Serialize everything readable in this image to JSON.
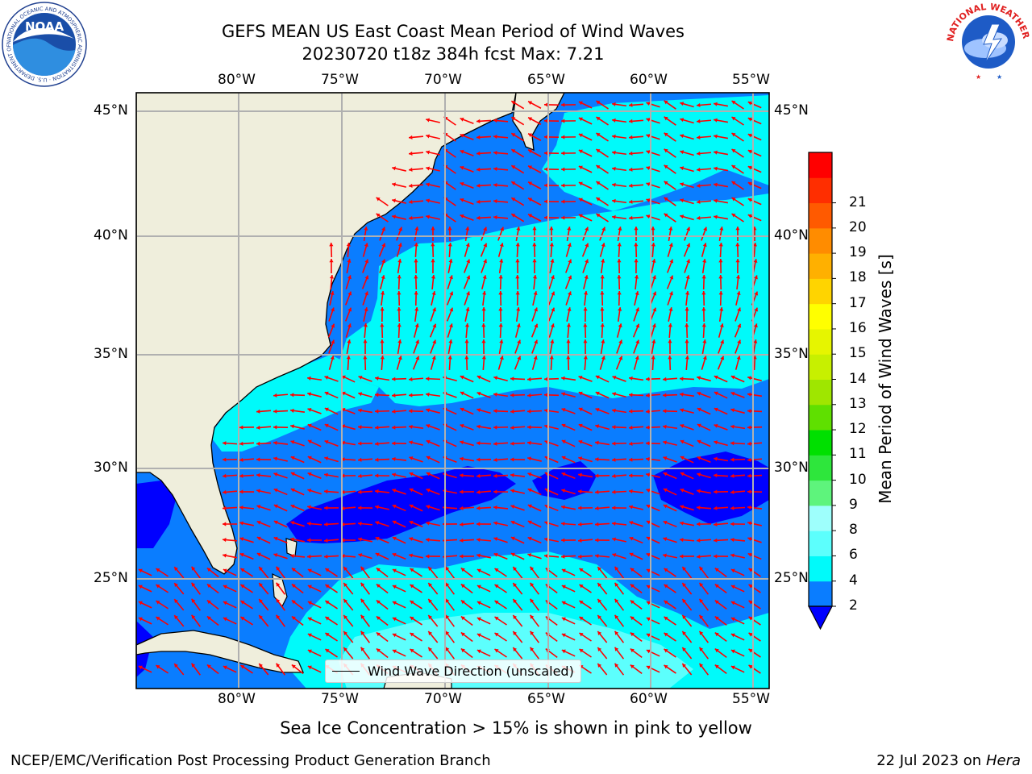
{
  "title": {
    "line1": "GEFS MEAN US East Coast Mean Period of Wind Waves",
    "line2": "20230720 t18z 384h fcst   Max: 7.21"
  },
  "map": {
    "lon_labels": [
      "80°W",
      "75°W",
      "70°W",
      "65°W",
      "60°W",
      "55°W"
    ],
    "lat_labels": [
      "45°N",
      "40°N",
      "35°N",
      "30°N",
      "25°N"
    ],
    "legend_label": "Wind Wave Direction (unscaled)",
    "colors": {
      "land": "#efeedc",
      "level_2_4": "#0a7dff",
      "level_lt_2": "#0000ff",
      "level_4_6": "#00fafa",
      "level_6_8": "#5cfffd",
      "arrow": "#ff0000",
      "grid": "#b0b0b0"
    }
  },
  "colorbar": {
    "label": "Mean Period of Wind Waves [s]",
    "ticks": [
      "2",
      "4",
      "6",
      "8",
      "9",
      "10",
      "11",
      "12",
      "13",
      "14",
      "15",
      "16",
      "17",
      "18",
      "19",
      "20",
      "21"
    ],
    "colors": [
      "#0a7dff",
      "#00fafa",
      "#5cfffd",
      "#9efffc",
      "#5ef47c",
      "#2ee63c",
      "#00e000",
      "#5fe000",
      "#9fe600",
      "#c7f000",
      "#e6f500",
      "#ffff00",
      "#ffd400",
      "#ffb000",
      "#ff8c00",
      "#ff5a00",
      "#ff2e00",
      "#ff0000"
    ],
    "under_color": "#0000ff"
  },
  "note": "Sea Ice Concentration > 15% is shown in pink to yellow",
  "footer": {
    "left": "NCEP/EMC/Verification Post Processing Product Generation Branch",
    "date": "22 Jul 2023 on ",
    "machine": "Hera"
  },
  "logos": {
    "noaa": "NOAA",
    "noaa_ring": "NATIONAL OCEANIC AND ATMOSPHERIC ADMINISTRATION · U.S. DEPARTMENT OF COMMERCE",
    "nws_ring": "NATIONAL WEATHER SERVICE"
  }
}
